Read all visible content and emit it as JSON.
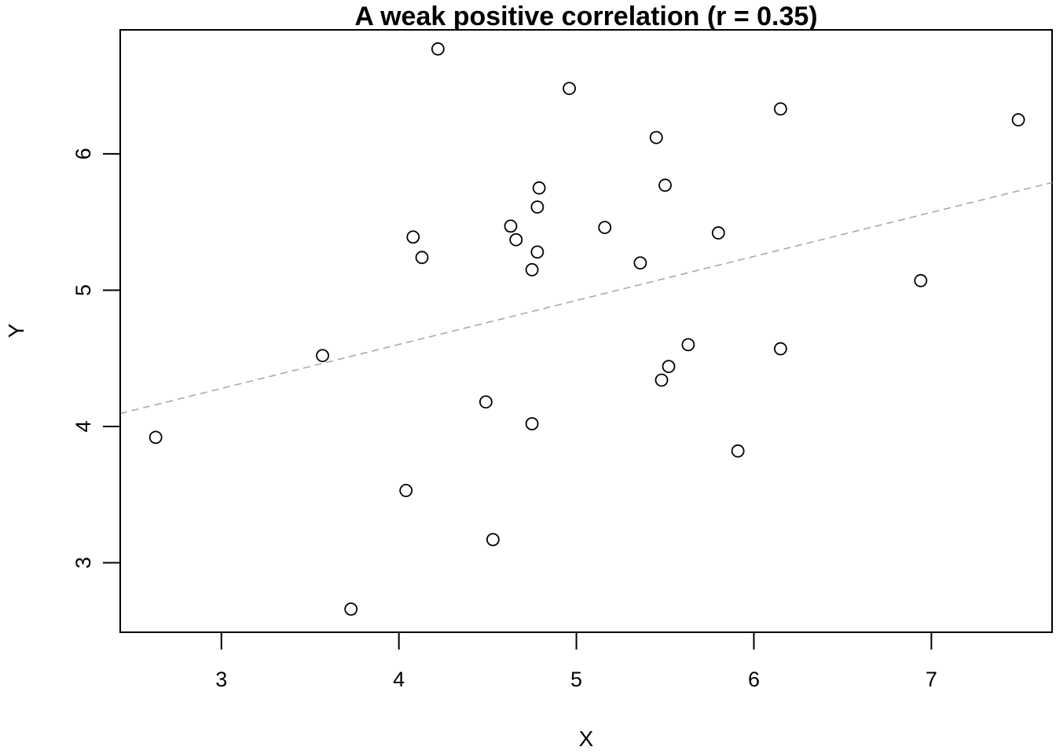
{
  "chart_data": {
    "type": "scatter",
    "title": "A weak positive correlation (r = 0.35)",
    "xlabel": "X",
    "ylabel": "Y",
    "xlim": [
      2.43,
      7.68
    ],
    "ylim": [
      2.49,
      6.91
    ],
    "x_ticks": [
      3,
      4,
      5,
      6,
      7
    ],
    "y_ticks": [
      3,
      4,
      5,
      6
    ],
    "grid": false,
    "legend": "none",
    "point_style": "open-circle",
    "point_color": "#000000",
    "trend_line": {
      "style": "dashed",
      "color": "#aaaaaa",
      "intercept": 3.31,
      "slope": 0.3229
    },
    "points": [
      {
        "x": 2.63,
        "y": 3.92
      },
      {
        "x": 3.57,
        "y": 4.52
      },
      {
        "x": 3.73,
        "y": 2.66
      },
      {
        "x": 4.04,
        "y": 3.53
      },
      {
        "x": 4.08,
        "y": 5.39
      },
      {
        "x": 4.13,
        "y": 5.24
      },
      {
        "x": 4.22,
        "y": 6.77
      },
      {
        "x": 4.49,
        "y": 4.18
      },
      {
        "x": 4.53,
        "y": 3.17
      },
      {
        "x": 4.63,
        "y": 5.47
      },
      {
        "x": 4.66,
        "y": 5.37
      },
      {
        "x": 4.75,
        "y": 4.02
      },
      {
        "x": 4.75,
        "y": 5.15
      },
      {
        "x": 4.78,
        "y": 5.28
      },
      {
        "x": 4.78,
        "y": 5.61
      },
      {
        "x": 4.79,
        "y": 5.75
      },
      {
        "x": 4.96,
        "y": 6.48
      },
      {
        "x": 5.16,
        "y": 5.46
      },
      {
        "x": 5.36,
        "y": 5.2
      },
      {
        "x": 5.45,
        "y": 6.12
      },
      {
        "x": 5.48,
        "y": 4.34
      },
      {
        "x": 5.5,
        "y": 5.77
      },
      {
        "x": 5.52,
        "y": 4.44
      },
      {
        "x": 5.63,
        "y": 4.6
      },
      {
        "x": 5.8,
        "y": 5.42
      },
      {
        "x": 5.91,
        "y": 3.82
      },
      {
        "x": 6.15,
        "y": 4.57
      },
      {
        "x": 6.15,
        "y": 6.33
      },
      {
        "x": 6.94,
        "y": 5.07
      },
      {
        "x": 7.49,
        "y": 6.25
      }
    ]
  }
}
